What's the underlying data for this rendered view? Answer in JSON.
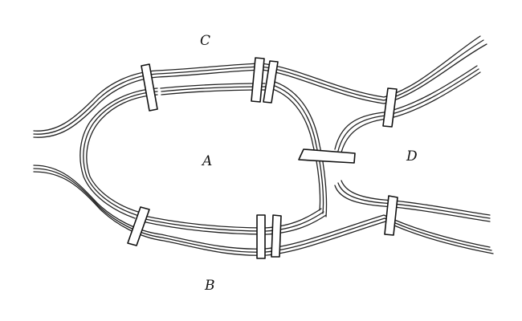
{
  "title": "",
  "labels": {
    "a": "A",
    "b": "B",
    "c": "C",
    "d": "D"
  },
  "colors": {
    "ink": "#222222",
    "background": "#ffffff"
  }
}
